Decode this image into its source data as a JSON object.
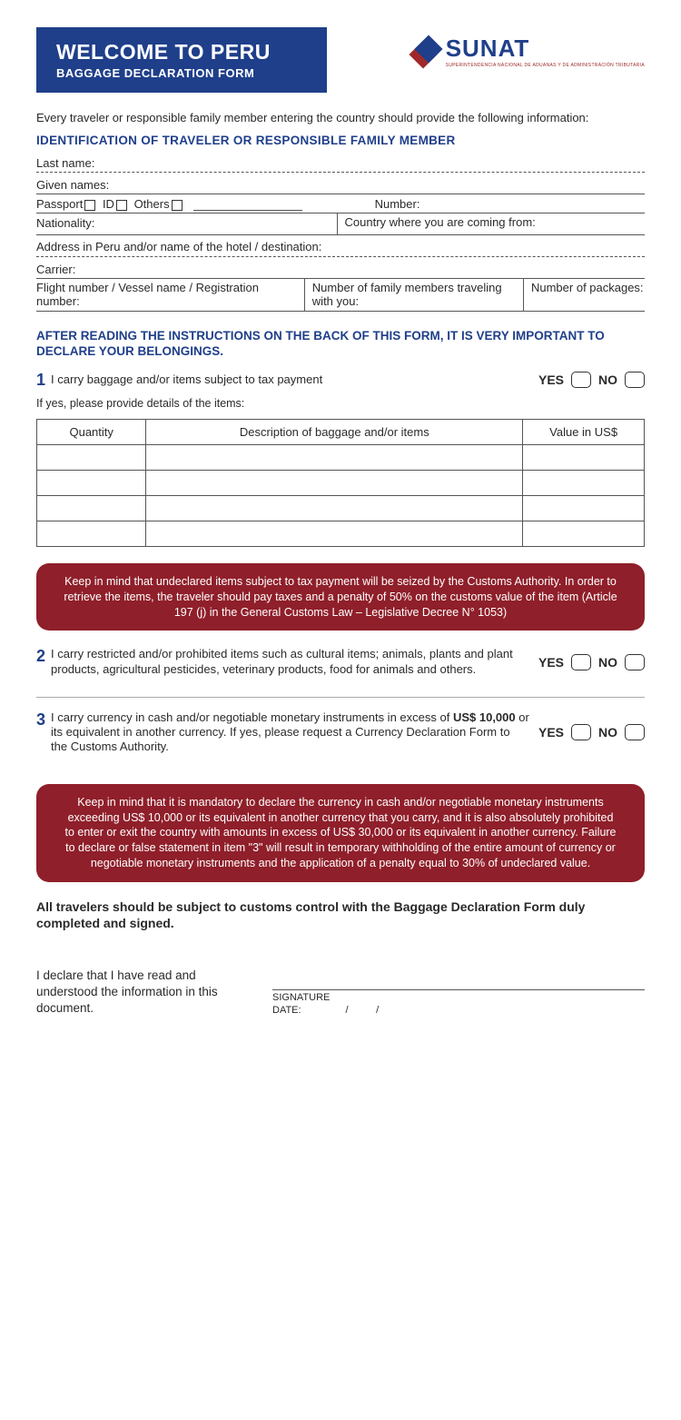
{
  "header": {
    "title": "WELCOME TO PERU",
    "subtitle": "BAGGAGE DECLARATION FORM",
    "logo_text": "SUNAT",
    "logo_sub": "SUPERINTENDENCIA NACIONAL DE ADUANAS Y DE ADMINISTRACIÓN TRIBUTARIA"
  },
  "intro": "Every traveler or responsible family member entering the country should provide the following information:",
  "section1_title": "IDENTIFICATION OF TRAVELER OR RESPONSIBLE FAMILY MEMBER",
  "fields": {
    "last_name": "Last name:",
    "given_names": "Given names:",
    "passport": "Passport",
    "id": "ID",
    "others": "Others",
    "number": "Number:",
    "nationality": "Nationality:",
    "country_from": "Country where you are coming from:",
    "address": "Address in Peru and/or name of the hotel / destination:",
    "carrier": "Carrier:",
    "flight": "Flight number / Vessel name / Registration number:",
    "family_members": "Number of family members traveling with you:",
    "packages": "Number of packages:"
  },
  "important": "AFTER READING THE INSTRUCTIONS ON THE BACK OF THIS FORM, IT IS VERY IMPORTANT TO DECLARE YOUR BELONGINGS.",
  "q1": {
    "num": "1",
    "text": "I carry baggage and/or items subject to tax payment",
    "subnote": "If yes, please provide details of the items:"
  },
  "yn": {
    "yes": "YES",
    "no": "NO"
  },
  "table": {
    "col1": "Quantity",
    "col2": "Description of baggage and/or items",
    "col3": "Value in US$"
  },
  "warning1": "Keep in mind that undeclared items subject to tax payment will be seized by the Customs Authority. In order to retrieve the items, the traveler should pay taxes and a penalty of 50% on the customs value of the item\n(Article 197 (j) in the General Customs Law – Legislative Decree N° 1053)",
  "q2": {
    "num": "2",
    "text": "I carry restricted and/or prohibited items such as cultural items; animals, plants and plant products, agricultural pesticides, veterinary products, food for animals and others."
  },
  "q3": {
    "num": "3",
    "text_a": "I carry currency in cash and/or negotiable monetary instruments in excess of ",
    "text_bold": "US$ 10,000",
    "text_b": " or its equivalent in another currency. If yes, please request a Currency Declaration Form to the Customs Authority."
  },
  "warning2": "Keep in mind that it is mandatory to declare the currency in cash and/or negotiable monetary instruments exceeding US$ 10,000 or its equivalent in another currency that you carry, and it is also absolutely prohibited to enter or exit the country with amounts in excess of US$ 30,000 or its equivalent in another currency. Failure to declare or false statement in item  \"3\" will result in temporary withholding of the entire amount of currency or negotiable monetary instruments and the application of a penalty equal to 30% of undeclared value.",
  "bold_note": "All travelers should be subject to customs control with the Baggage Declaration Form duly completed and signed.",
  "declaration": "I declare that I have read and understood the information in this document.",
  "signature": "SIGNATURE",
  "date": "DATE:",
  "date_sep": "/",
  "colors": {
    "primary": "#1f3f8a",
    "warning_bg": "#8f1f2a",
    "logo_red": "#a02828"
  }
}
